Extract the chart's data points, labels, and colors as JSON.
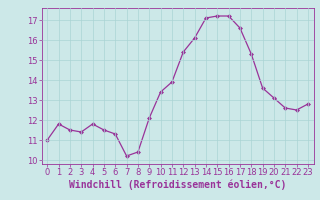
{
  "x": [
    0,
    1,
    2,
    3,
    4,
    5,
    6,
    7,
    8,
    9,
    10,
    11,
    12,
    13,
    14,
    15,
    16,
    17,
    18,
    19,
    20,
    21,
    22,
    23
  ],
  "y": [
    11.0,
    11.8,
    11.5,
    11.4,
    11.8,
    11.5,
    11.3,
    10.2,
    10.4,
    12.1,
    13.4,
    13.9,
    15.4,
    16.1,
    17.1,
    17.2,
    17.2,
    16.6,
    15.3,
    13.6,
    13.1,
    12.6,
    12.5,
    12.8
  ],
  "line_color": "#993399",
  "marker": "D",
  "markersize": 2.0,
  "linewidth": 0.9,
  "xlabel": "Windchill (Refroidissement éolien,°C)",
  "xlabel_fontsize": 7,
  "xlim": [
    -0.5,
    23.5
  ],
  "ylim": [
    9.8,
    17.6
  ],
  "yticks": [
    10,
    11,
    12,
    13,
    14,
    15,
    16,
    17
  ],
  "xticks": [
    0,
    1,
    2,
    3,
    4,
    5,
    6,
    7,
    8,
    9,
    10,
    11,
    12,
    13,
    14,
    15,
    16,
    17,
    18,
    19,
    20,
    21,
    22,
    23
  ],
  "background_color": "#cce8e8",
  "grid_color": "#aad4d4",
  "tick_color": "#993399",
  "label_color": "#993399",
  "tick_fontsize": 6,
  "fig_background": "#cce8e8"
}
